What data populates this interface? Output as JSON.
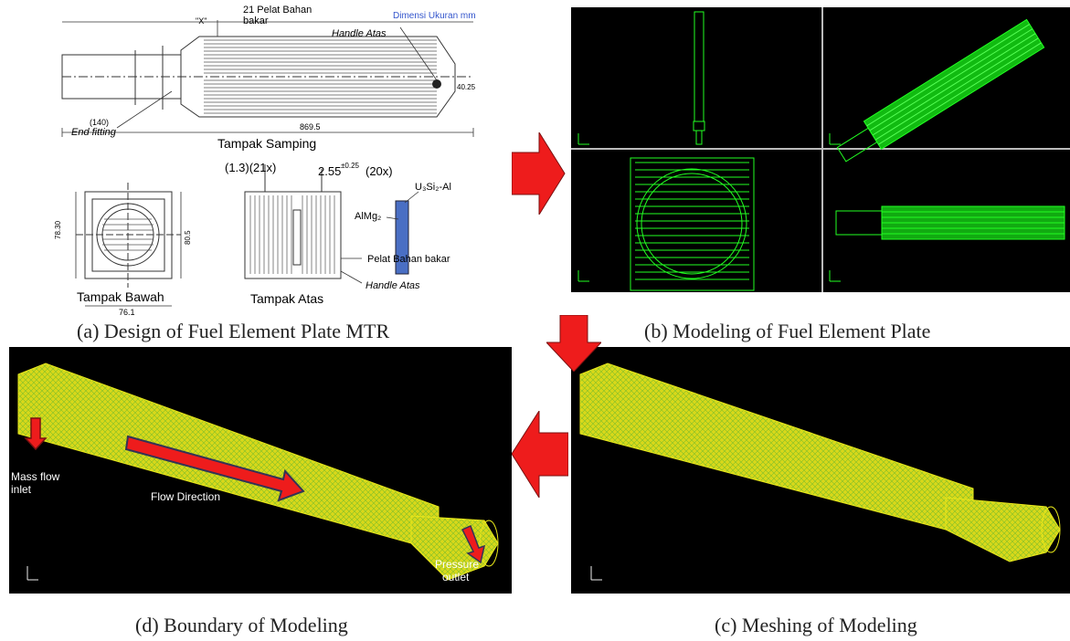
{
  "panels": {
    "a": {
      "caption": "(a) Design of Fuel Element Plate MTR",
      "labels": {
        "plates": "21 Pelat Bahan",
        "plates2": "bakar",
        "units": "Dimensi Ukuran mm",
        "handle": "Handle Atas",
        "end_fitting": "End fitting",
        "side_view": "Tampak Samping",
        "bottom_view": "Tampak Bawah",
        "top_view": "Tampak Atas",
        "dim_a": "(1.3)(21x)",
        "dim_b": "2.55",
        "dim_b_tol": "±0.25",
        "dim_b_count": "(20x)",
        "fuel": "U₃Si₂-Al",
        "clad": "AlMg₂",
        "fuel_plate": "Pelat Bahan bakar",
        "handle2": "Handle Atas",
        "x_mark": "\"X\"",
        "dim_140": "(140)",
        "dim_76": "76.1",
        "dim_789": "78.30",
        "dim_805": "80.5",
        "dim_887": "869.5",
        "dim_40": "40.25"
      }
    },
    "b": {
      "caption": "(b) Modeling of Fuel Element Plate"
    },
    "c": {
      "caption": "(c) Meshing of Modeling"
    },
    "d": {
      "caption": "(d) Boundary of Modeling",
      "labels": {
        "inlet": "Mass flow inlet",
        "inlet1": "Mass flow",
        "inlet2": "inlet",
        "flow": "Flow Direction",
        "outlet1": "Pressure",
        "outlet2": "outlet"
      }
    }
  },
  "colors": {
    "arrow": "#ee1c1c",
    "arrow_stroke": "#7a1010",
    "mesh_yellow": "#e8e81a",
    "mesh_green": "#3fd13f",
    "model_green": "#22ff22",
    "bg_black": "#000000",
    "blue_text": "#3355cc",
    "fuel_blue": "#4a6fc4"
  }
}
